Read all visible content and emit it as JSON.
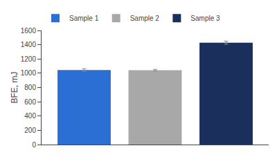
{
  "chart_data": {
    "type": "bar",
    "categories": [
      "Sample 1",
      "Sample 2",
      "Sample 3"
    ],
    "values": [
      1045,
      1042,
      1428
    ],
    "errors": [
      18,
      12,
      22
    ],
    "colors": [
      "#2b6fd4",
      "#a8a8a8",
      "#1b2f5c"
    ],
    "ylabel": "BFE, mJ",
    "ylim": [
      0,
      1600
    ],
    "yticks": [
      0,
      200,
      400,
      600,
      800,
      1000,
      1200,
      1400,
      1600
    ],
    "grid": false,
    "legend": "upper left",
    "tick_labels": "y"
  }
}
